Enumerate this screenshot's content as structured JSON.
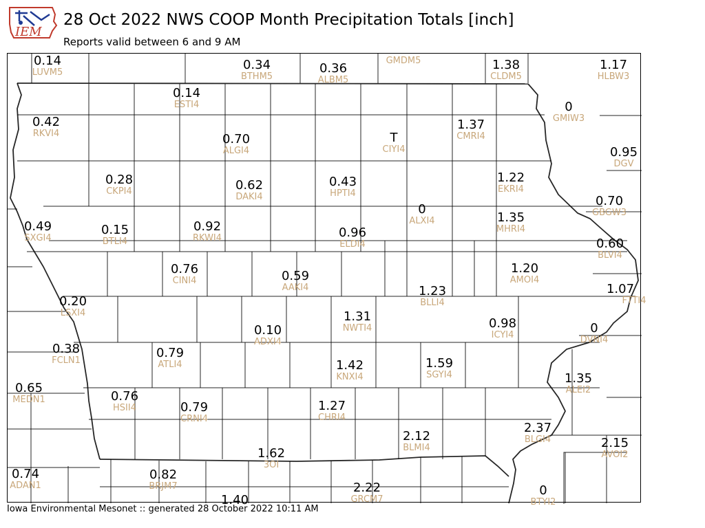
{
  "header": {
    "logo_text": "IEM",
    "title": "28 Oct 2022 NWS COOP Month Precipitation Totals [inch]",
    "subtitle": "Reports valid between 6 and 9 AM"
  },
  "footer": {
    "credit": "Iowa Environmental Mesonet :: generated 28 October 2022 10:11 AM"
  },
  "colors": {
    "value_text": "#000000",
    "station_id_text": "#c8a77a",
    "county_lines": "#000000",
    "logo_red": "#c0392b",
    "logo_blue": "#1f3a93"
  },
  "stations": [
    {
      "id": "LUVM5",
      "value": "0.14"
    },
    {
      "id": "BTHM5",
      "value": "0.34"
    },
    {
      "id": "ALBM5",
      "value": "0.36"
    },
    {
      "id": "GMDM5",
      "value": ""
    },
    {
      "id": "CLDM5",
      "value": "1.38"
    },
    {
      "id": "HLBW3",
      "value": "1.17"
    },
    {
      "id": "ESTI4",
      "value": "0.14"
    },
    {
      "id": "GMIW3",
      "value": "0"
    },
    {
      "id": "RKVI4",
      "value": "0.42"
    },
    {
      "id": "CMRI4",
      "value": "1.37"
    },
    {
      "id": "ALGI4",
      "value": "0.70"
    },
    {
      "id": "CIYI4",
      "value": "T"
    },
    {
      "id": "DGV",
      "value": "0.95"
    },
    {
      "id": "EKRI4",
      "value": "1.22"
    },
    {
      "id": "CKPI4",
      "value": "0.28"
    },
    {
      "id": "DAKI4",
      "value": "0.62"
    },
    {
      "id": "HPTI4",
      "value": "0.43"
    },
    {
      "id": "GBGW3",
      "value": "0.70"
    },
    {
      "id": "ALXI4",
      "value": "0"
    },
    {
      "id": "MHRI4",
      "value": "1.35"
    },
    {
      "id": "SXGI4",
      "value": "0.49"
    },
    {
      "id": "BTLI4",
      "value": "0.15"
    },
    {
      "id": "RKWI4",
      "value": "0.92"
    },
    {
      "id": "ELDI4",
      "value": "0.96"
    },
    {
      "id": "BLVI4",
      "value": "0.60"
    },
    {
      "id": "CINI4",
      "value": "0.76"
    },
    {
      "id": "AMOI4",
      "value": "1.20"
    },
    {
      "id": "AAKI4",
      "value": "0.59"
    },
    {
      "id": "BLLI4",
      "value": "1.23"
    },
    {
      "id": "FTTI4",
      "value": "1.07"
    },
    {
      "id": "LSXI4",
      "value": "0.20"
    },
    {
      "id": "NWTI4",
      "value": "1.31"
    },
    {
      "id": "ICYI4",
      "value": "0.98"
    },
    {
      "id": "ADXI4",
      "value": "0.10"
    },
    {
      "id": "DVNI4",
      "value": "0"
    },
    {
      "id": "FCLN1",
      "value": "0.38"
    },
    {
      "id": "ATLI4",
      "value": "0.79"
    },
    {
      "id": "KNXI4",
      "value": "1.42"
    },
    {
      "id": "SGYI4",
      "value": "1.59"
    },
    {
      "id": "ALEI2",
      "value": "1.35"
    },
    {
      "id": "MEDN1",
      "value": "0.65"
    },
    {
      "id": "HSII4",
      "value": "0.76"
    },
    {
      "id": "CRNI4",
      "value": "0.79"
    },
    {
      "id": "CHRI4",
      "value": "1.27"
    },
    {
      "id": "BLMI4",
      "value": "2.12"
    },
    {
      "id": "BLGI4",
      "value": "2.37"
    },
    {
      "id": "AVOI2",
      "value": "2.15"
    },
    {
      "id": "3OI",
      "value": "1.62"
    },
    {
      "id": "ADAN1",
      "value": "0.74"
    },
    {
      "id": "BRJM7",
      "value": "0.82"
    },
    {
      "id": "GRCM7",
      "value": "2.22"
    },
    {
      "id": "BTYI2",
      "value": "0"
    },
    {
      "id": "",
      "value": "1.40"
    }
  ]
}
